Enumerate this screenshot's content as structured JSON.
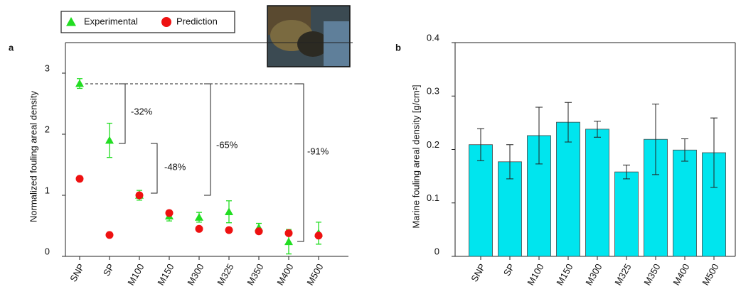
{
  "chart_data": [
    {
      "type": "scatter",
      "panel_label": "a",
      "ylabel": "Normalized fouling areal density",
      "categories": [
        "SNP",
        "SP",
        "M100",
        "M150",
        "M300",
        "M325",
        "M350",
        "M400",
        "M500"
      ],
      "ylim": [
        0,
        3.5
      ],
      "yticks": [
        0,
        1,
        2,
        3
      ],
      "series": [
        {
          "name": "Experimental",
          "color": "#22dd22",
          "marker": "triangle",
          "values": [
            2.83,
            1.9,
            1.0,
            0.66,
            0.64,
            0.73,
            0.47,
            0.24,
            0.38
          ],
          "errors": [
            0.08,
            0.28,
            0.08,
            0.08,
            0.08,
            0.18,
            0.07,
            0.2,
            0.18
          ]
        },
        {
          "name": "Prediction",
          "color": "#ee1111",
          "marker": "circle",
          "values": [
            1.27,
            0.35,
            1.0,
            0.71,
            0.45,
            0.43,
            0.41,
            0.38,
            0.34
          ]
        }
      ],
      "annotations": [
        "-32%",
        "-48%",
        "-65%",
        "-91%"
      ]
    },
    {
      "type": "bar",
      "panel_label": "b",
      "ylabel": "Marine fouling areal density [g/cm²]",
      "categories": [
        "SNP",
        "SP",
        "M100",
        "M150",
        "M300",
        "M325",
        "M350",
        "M400",
        "M500"
      ],
      "ylim": [
        0,
        0.4
      ],
      "yticks": [
        0,
        0.1,
        0.2,
        0.3,
        0.4
      ],
      "color": "#00e5ee",
      "values": [
        0.209,
        0.177,
        0.226,
        0.251,
        0.238,
        0.158,
        0.219,
        0.199,
        0.194
      ],
      "errors": [
        0.03,
        0.032,
        0.053,
        0.037,
        0.015,
        0.013,
        0.066,
        0.021,
        0.065
      ]
    }
  ]
}
